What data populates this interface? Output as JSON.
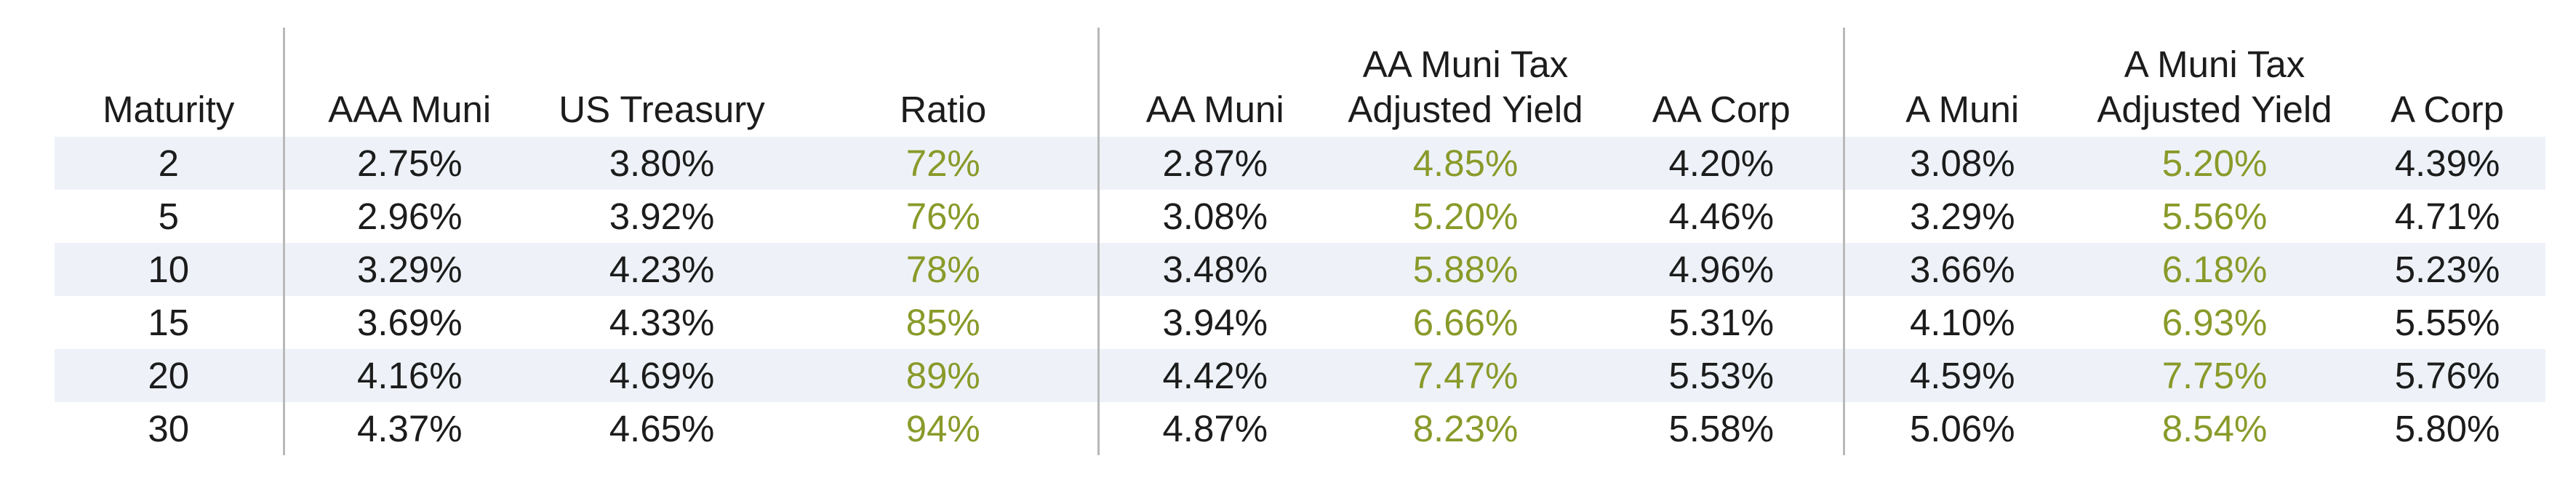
{
  "colors": {
    "accent": "#8a9a2a",
    "stripe": "#eef2f8",
    "text": "#1c1c1c",
    "separator": "#b8b8b8"
  },
  "table": {
    "headers": {
      "maturity": [
        "Maturity"
      ],
      "aaa_muni": [
        "AAA Muni"
      ],
      "us_treasury": [
        "US Treasury"
      ],
      "ratio": [
        "Ratio"
      ],
      "aa_muni": [
        "AA Muni"
      ],
      "aa_tax_adj": [
        "AA Muni Tax",
        "Adjusted Yield"
      ],
      "aa_corp": [
        "AA Corp"
      ],
      "a_muni": [
        "A Muni"
      ],
      "a_tax_adj": [
        "A Muni Tax",
        "Adjusted Yield"
      ],
      "a_corp": [
        "A Corp"
      ]
    },
    "rows": [
      [
        "2",
        "2.75%",
        "3.80%",
        "72%",
        "2.87%",
        "4.85%",
        "4.20%",
        "3.08%",
        "5.20%",
        "4.39%"
      ],
      [
        "5",
        "2.96%",
        "3.92%",
        "76%",
        "3.08%",
        "5.20%",
        "4.46%",
        "3.29%",
        "5.56%",
        "4.71%"
      ],
      [
        "10",
        "3.29%",
        "4.23%",
        "78%",
        "3.48%",
        "5.88%",
        "4.96%",
        "3.66%",
        "6.18%",
        "5.23%"
      ],
      [
        "15",
        "3.69%",
        "4.33%",
        "85%",
        "3.94%",
        "6.66%",
        "5.31%",
        "4.10%",
        "6.93%",
        "5.55%"
      ],
      [
        "20",
        "4.16%",
        "4.69%",
        "89%",
        "4.42%",
        "7.47%",
        "5.53%",
        "4.59%",
        "7.75%",
        "5.76%"
      ],
      [
        "30",
        "4.37%",
        "4.65%",
        "94%",
        "4.87%",
        "8.23%",
        "5.58%",
        "5.06%",
        "8.54%",
        "5.80%"
      ]
    ]
  }
}
